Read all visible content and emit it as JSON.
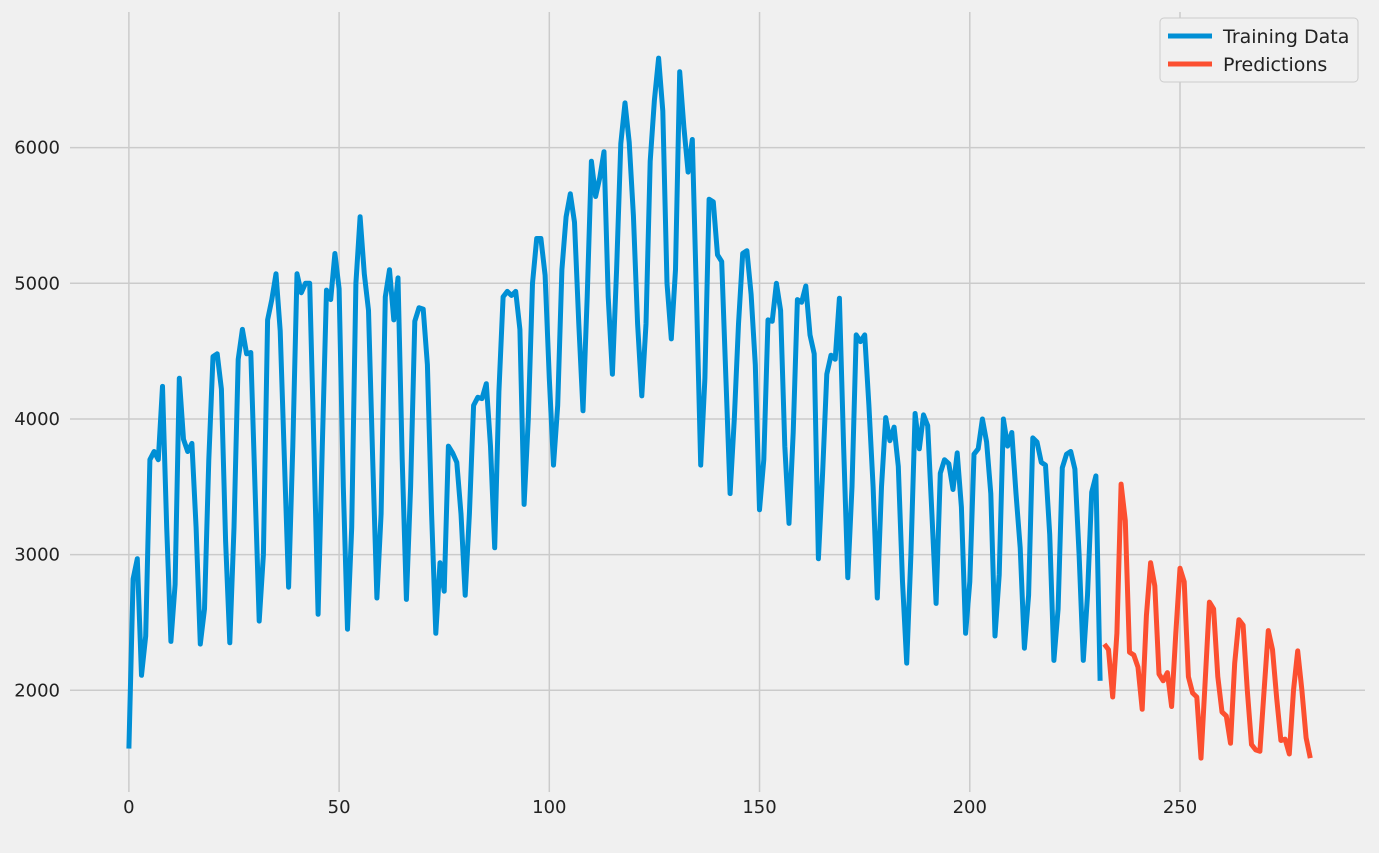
{
  "chart_data": {
    "type": "line",
    "title": "",
    "xlabel": "",
    "ylabel": "",
    "xlim": [
      -14,
      294
    ],
    "ylim": [
      1250,
      7000
    ],
    "xticks": [
      0,
      50,
      100,
      150,
      200,
      250
    ],
    "yticks": [
      2000,
      3000,
      4000,
      5000,
      6000
    ],
    "grid": true,
    "legend_position": "top-right",
    "series": [
      {
        "name": "Training Data",
        "color": "#008fd5",
        "x_start": 0,
        "values": [
          1570,
          2820,
          2970,
          2110,
          2400,
          3700,
          3760,
          3700,
          4240,
          3200,
          2360,
          2780,
          4300,
          3850,
          3760,
          3820,
          3200,
          2340,
          2600,
          3700,
          4460,
          4480,
          4220,
          3100,
          2350,
          3200,
          4440,
          4660,
          4480,
          4490,
          3500,
          2510,
          3000,
          4730,
          4880,
          5070,
          4650,
          3700,
          2760,
          3800,
          5070,
          4930,
          5000,
          5000,
          3800,
          2560,
          3800,
          4950,
          4880,
          5220,
          4960,
          3500,
          2450,
          3200,
          5000,
          5490,
          5070,
          4800,
          3700,
          2680,
          3300,
          4900,
          5100,
          4730,
          5040,
          3700,
          2670,
          3500,
          4720,
          4820,
          4810,
          4400,
          3300,
          2420,
          2940,
          2730,
          3800,
          3750,
          3680,
          3300,
          2700,
          3300,
          4100,
          4160,
          4150,
          4260,
          3800,
          3050,
          4200,
          4900,
          4940,
          4910,
          4940,
          4660,
          3370,
          4000,
          5000,
          5330,
          5330,
          5060,
          4300,
          3660,
          4100,
          5100,
          5490,
          5660,
          5450,
          4700,
          4060,
          4900,
          5900,
          5640,
          5780,
          5970,
          4900,
          4330,
          5100,
          6030,
          6330,
          6040,
          5500,
          4700,
          4170,
          4700,
          5900,
          6350,
          6660,
          6270,
          5000,
          4590,
          5100,
          6560,
          6150,
          5820,
          6060,
          4900,
          3660,
          4300,
          5620,
          5600,
          5210,
          5160,
          4300,
          3450,
          4000,
          4700,
          5220,
          5240,
          4920,
          4400,
          3330,
          3700,
          4730,
          4720,
          5000,
          4800,
          3800,
          3230,
          3900,
          4880,
          4860,
          4980,
          4620,
          4480,
          2970,
          3600,
          4330,
          4470,
          4440,
          4890,
          3800,
          2830,
          3500,
          4620,
          4570,
          4620,
          4100,
          3500,
          2680,
          3500,
          4010,
          3840,
          3940,
          3650,
          2800,
          2200,
          3000,
          4040,
          3780,
          4030,
          3950,
          3300,
          2640,
          3600,
          3700,
          3670,
          3480,
          3750,
          3350,
          2420,
          2800,
          3740,
          3780,
          4000,
          3830,
          3450,
          2400,
          2850,
          4000,
          3800,
          3900,
          3450,
          3050,
          2310,
          2700,
          3860,
          3830,
          3680,
          3660,
          3150,
          2220,
          2600,
          3640,
          3740,
          3760,
          3630,
          3000,
          2220,
          2700,
          3460,
          3580,
          2070
        ]
      },
      {
        "name": "Predictions",
        "color": "#fc4f30",
        "x_start": 232,
        "values": [
          2340,
          2300,
          1950,
          2420,
          3520,
          3250,
          2280,
          2260,
          2170,
          1860,
          2550,
          2940,
          2770,
          2120,
          2070,
          2130,
          1880,
          2420,
          2900,
          2800,
          2100,
          1980,
          1950,
          1500,
          2070,
          2650,
          2600,
          2100,
          1840,
          1810,
          1610,
          2200,
          2520,
          2480,
          2000,
          1600,
          1560,
          1550,
          2000,
          2440,
          2300,
          1940,
          1630,
          1640,
          1530,
          2000,
          2290,
          2000,
          1650,
          1500
        ]
      }
    ]
  }
}
